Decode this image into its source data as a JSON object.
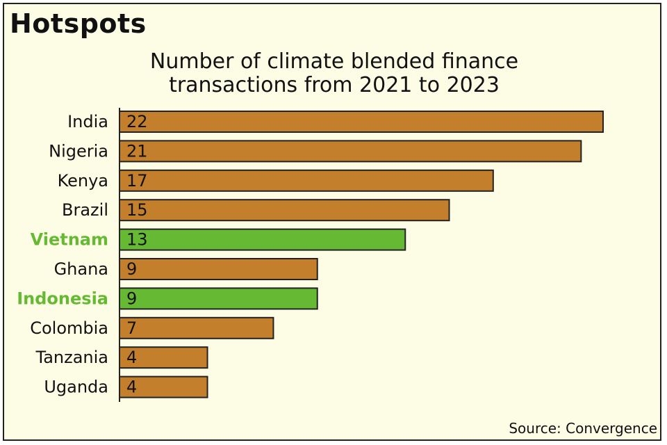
{
  "chart_data": {
    "type": "bar",
    "orientation": "horizontal",
    "title": "Hotspots",
    "subtitle": "Number of climate blended finance transactions from 2021 to 2023",
    "source": "Source: Convergence",
    "categories": [
      "India",
      "Nigeria",
      "Kenya",
      "Brazil",
      "Vietnam",
      "Ghana",
      "Indonesia",
      "Colombia",
      "Tanzania",
      "Uganda"
    ],
    "values": [
      22,
      21,
      17,
      15,
      13,
      9,
      9,
      7,
      4,
      4
    ],
    "colors": [
      "#c47f2c",
      "#c47f2c",
      "#c47f2c",
      "#c47f2c",
      "#66b933",
      "#c47f2c",
      "#66b933",
      "#c47f2c",
      "#c47f2c",
      "#c47f2c"
    ],
    "label_colors": [
      "#111111",
      "#111111",
      "#111111",
      "#111111",
      "#66b933",
      "#111111",
      "#66b933",
      "#111111",
      "#111111",
      "#111111"
    ],
    "xlim": [
      0,
      22
    ]
  }
}
